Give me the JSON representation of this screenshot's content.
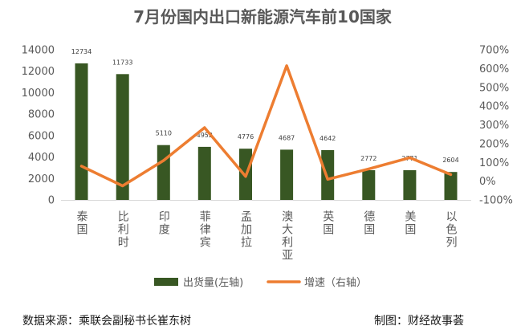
{
  "footer": {
    "source": "数据来源：乘联会副秘书长崔东树",
    "credit": "制图：财经故事荟"
  },
  "chart_data": {
    "type": "bar",
    "title": "7月份国内出口新能源汽车前10国家",
    "categories": [
      "泰国",
      "比利时",
      "印度",
      "菲律宾",
      "孟加拉",
      "澳大利亚",
      "英国",
      "德国",
      "美国",
      "以色列"
    ],
    "series": [
      {
        "name": "出货量(左轴)",
        "type": "bar",
        "axis": "left",
        "color": "#385723",
        "values": [
          12734,
          11733,
          5110,
          4952,
          4776,
          4687,
          4642,
          2772,
          2771,
          2604
        ]
      },
      {
        "name": "增速（右轴）",
        "type": "line",
        "axis": "right",
        "color": "#ED7D31",
        "values": [
          80,
          -25,
          110,
          285,
          25,
          615,
          10,
          65,
          125,
          35
        ]
      }
    ],
    "y_left": {
      "lim": [
        0,
        14000
      ],
      "ticks": [
        0,
        2000,
        4000,
        6000,
        8000,
        10000,
        12000,
        14000
      ]
    },
    "y_right": {
      "lim": [
        -100,
        700
      ],
      "ticks": [
        -100,
        0,
        100,
        200,
        300,
        400,
        500,
        600,
        700
      ],
      "tick_labels": [
        "-100%",
        "0%",
        "100%",
        "200%",
        "300%",
        "400%",
        "500%",
        "600%",
        "700%"
      ]
    },
    "grid": false,
    "legend_position": "bottom"
  }
}
